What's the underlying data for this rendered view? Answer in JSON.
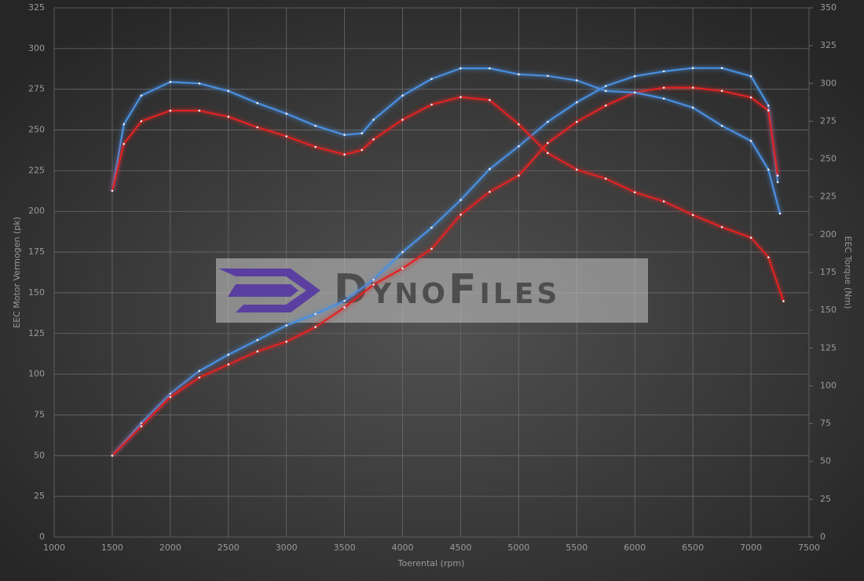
{
  "chart_data": {
    "type": "line",
    "xlabel": "Toerental (rpm)",
    "ylabel": "EEC Motor Vermogen (pk)",
    "y2label": "EEC Torque (Nm)",
    "watermark": "DynoFiles",
    "xlim": [
      1000,
      7500
    ],
    "xticks": [
      1000,
      1500,
      2000,
      2500,
      3000,
      3500,
      4000,
      4500,
      5000,
      5500,
      6000,
      6500,
      7000,
      7500
    ],
    "ylim": [
      0,
      325
    ],
    "yticks": [
      0,
      25,
      50,
      75,
      100,
      125,
      150,
      175,
      200,
      225,
      250,
      275,
      300,
      325
    ],
    "y2lim": [
      0,
      350
    ],
    "y2ticks": [
      0,
      25,
      50,
      75,
      100,
      125,
      150,
      175,
      200,
      225,
      250,
      275,
      300,
      325,
      350
    ],
    "grid": true,
    "series": [
      {
        "color": "#4a8fe0",
        "axis": "y",
        "x": [
          1500,
          1750,
          2000,
          2250,
          2500,
          2750,
          3000,
          3250,
          3500,
          3750,
          4000,
          4250,
          4500,
          4750,
          5000,
          5250,
          5500,
          5750,
          6000,
          6250,
          6500,
          6750,
          7000,
          7150,
          7230
        ],
        "values": [
          50,
          70,
          88,
          102,
          112,
          121,
          130,
          137,
          145,
          158,
          175,
          190,
          207,
          226,
          240,
          255,
          267,
          277,
          283,
          286,
          288,
          288,
          283,
          265,
          218
        ]
      },
      {
        "color": "#e02424",
        "axis": "y",
        "x": [
          1500,
          1750,
          2000,
          2250,
          2500,
          2750,
          3000,
          3250,
          3500,
          3750,
          4000,
          4250,
          4500,
          4750,
          5000,
          5250,
          5500,
          5750,
          6000,
          6250,
          6500,
          6750,
          7000,
          7150,
          7230
        ],
        "values": [
          50,
          68,
          86,
          98,
          106,
          114,
          120,
          129,
          141,
          155,
          165,
          177,
          198,
          212,
          222,
          242,
          255,
          265,
          273,
          276,
          276,
          274,
          270,
          262,
          222
        ]
      },
      {
        "color": "#4a8fe0",
        "axis": "y2",
        "x": [
          1500,
          1600,
          1750,
          2000,
          2250,
          2500,
          2750,
          3000,
          3250,
          3500,
          3650,
          3750,
          4000,
          4250,
          4500,
          4750,
          5000,
          5250,
          5500,
          5750,
          6000,
          6250,
          6500,
          6750,
          7000,
          7150,
          7250
        ],
        "values": [
          229,
          273,
          292,
          301,
          300,
          295,
          287,
          280,
          272,
          266,
          267,
          276,
          292,
          303,
          310,
          310,
          306,
          305,
          302,
          295,
          294,
          290,
          284,
          272,
          262,
          243,
          214
        ]
      },
      {
        "color": "#e02424",
        "axis": "y2",
        "x": [
          1500,
          1600,
          1750,
          2000,
          2250,
          2500,
          2750,
          3000,
          3250,
          3500,
          3650,
          3750,
          4000,
          4250,
          4500,
          4750,
          5000,
          5250,
          5500,
          5750,
          6000,
          6250,
          6500,
          6750,
          7000,
          7150,
          7280
        ],
        "values": [
          229,
          260,
          275,
          282,
          282,
          278,
          271,
          265,
          258,
          253,
          256,
          263,
          276,
          286,
          291,
          289,
          273,
          254,
          243,
          237,
          228,
          222,
          213,
          205,
          198,
          185,
          156
        ]
      }
    ]
  }
}
